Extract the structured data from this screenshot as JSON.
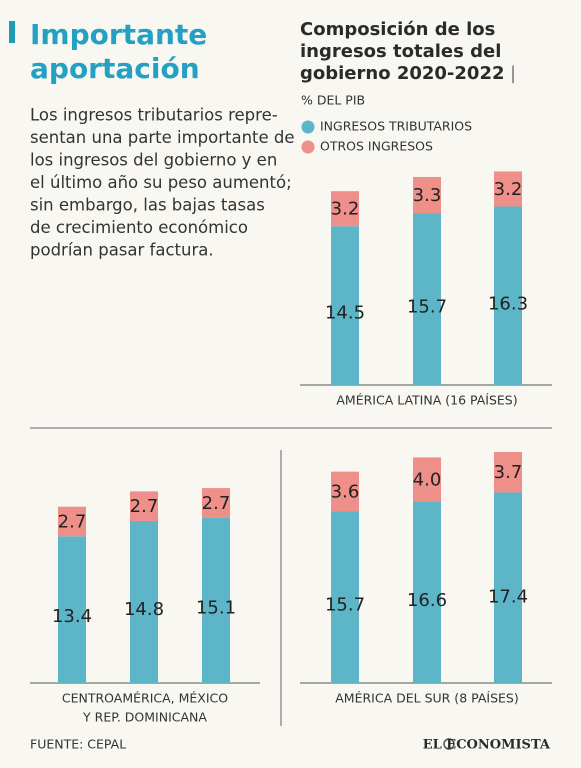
{
  "header": {
    "title": [
      "Importante",
      "aportación"
    ],
    "paragraph": [
      "Los ingresos tributarios repre-",
      "sentan una parte importante de",
      "los ingresos del gobierno y en",
      "el último año su peso aumentó;",
      "sin embargo, las bajas tasas",
      "de crecimiento económico",
      "podrían pasar factura."
    ]
  },
  "chart_data": [
    {
      "type": "bar",
      "stacked": true,
      "title": [
        "Composición de los",
        "ingresos totales del",
        "gobierno 2020-2022"
      ],
      "title_separator": "|",
      "subtitle": "% DEL PIB",
      "xlabel": [
        "AMÉRICA LATINA  (16 PAÍSES)"
      ],
      "categories": [
        null,
        null,
        null
      ],
      "series": [
        {
          "name": "INGRESOS TRIBUTARIOS",
          "color": "#5cb6c8",
          "values": [
            14.5,
            15.7,
            16.3
          ]
        },
        {
          "name": "OTROS INGRESOS",
          "color": "#ee8f89",
          "values": [
            3.2,
            3.3,
            3.2
          ]
        }
      ]
    },
    {
      "type": "bar",
      "stacked": true,
      "xlabel": [
        "CENTROAMÉRICA, MÉXICO",
        "Y REP. DOMINICANA"
      ],
      "categories": [
        null,
        null,
        null
      ],
      "series": [
        {
          "color": "#5cb6c8",
          "values": [
            13.4,
            14.8,
            15.1
          ]
        },
        {
          "color": "#ee8f89",
          "values": [
            2.7,
            2.7,
            2.7
          ]
        }
      ]
    },
    {
      "type": "bar",
      "stacked": true,
      "xlabel": [
        "AMÉRICA DEL SUR (8 PAÍSES)"
      ],
      "categories": [
        null,
        null,
        null
      ],
      "series": [
        {
          "color": "#5cb6c8",
          "values": [
            15.7,
            16.6,
            17.4
          ]
        },
        {
          "color": "#ee8f89",
          "values": [
            3.6,
            4,
            3.7
          ],
          "value_labels": [
            "3.6",
            "4.0",
            "3.7"
          ]
        }
      ]
    }
  ],
  "footer": {
    "source": "FUENTE: CEPAL",
    "brand": "EL ECONOMISTA"
  }
}
